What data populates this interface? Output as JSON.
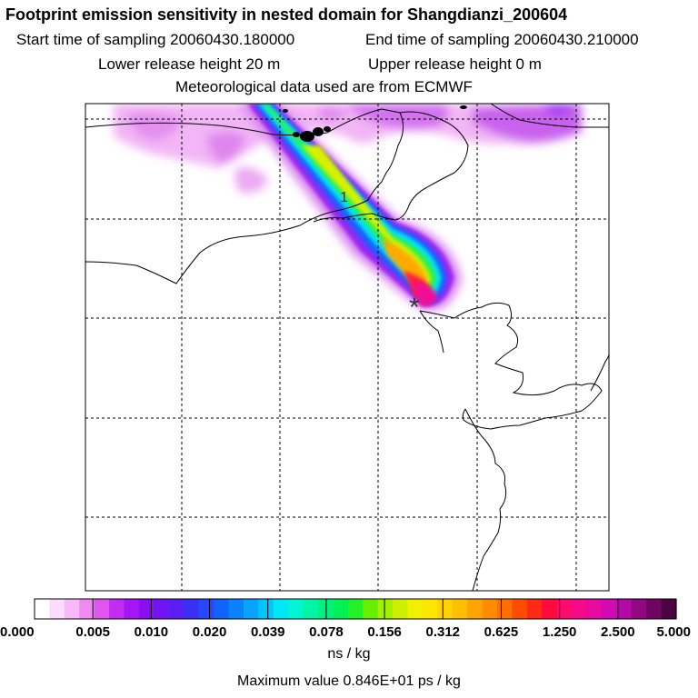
{
  "header": {
    "title": "Footprint emission sensitivity in nested domain for Shangdianzi_200604",
    "start": "Start time of sampling 20060430.180000",
    "end": "End time of sampling 20060430.210000",
    "lower": "Lower release height   20 m",
    "upper": "Upper release height    0 m",
    "met": "Meteorological data used are from ECMWF"
  },
  "footer": {
    "unit": "ns / kg",
    "max": "Maximum value  0.846E+01 ps / kg"
  },
  "colors": {
    "background": "#ffffff",
    "frame": "#000000"
  },
  "chart_data": {
    "type": "heatmap",
    "title": "Footprint emission sensitivity in nested domain for Shangdianzi_200604",
    "receptor_marker": "*",
    "plume_label": "1",
    "grid": true,
    "units": "ns / kg",
    "max_value": "0.846E+01 ps / kg",
    "colorbar": {
      "labels": [
        "0.000",
        "0.005",
        "0.010",
        "0.020",
        "0.039",
        "0.078",
        "0.156",
        "0.312",
        "0.625",
        "1.250",
        "2.500",
        "5.000"
      ],
      "colors": [
        "#ffffff",
        "#fcdcfc",
        "#f7b9f7",
        "#f08af3",
        "#df55ee",
        "#c22cf0",
        "#a316f5",
        "#8a0ef2",
        "#7014f5",
        "#5a1ef5",
        "#3a30f5",
        "#2548ff",
        "#1063ff",
        "#0a82ff",
        "#08a2ff",
        "#00c8ff",
        "#00e8f5",
        "#00f5d2",
        "#00f5a5",
        "#00f080",
        "#00f055",
        "#22f028",
        "#66f000",
        "#a0f000",
        "#cdf000",
        "#f0f000",
        "#ffe600",
        "#ffd200",
        "#ffbe00",
        "#ffa500",
        "#ff8c00",
        "#ff6e00",
        "#ff4b00",
        "#ff2a14",
        "#ff0a3c",
        "#ff0a6e",
        "#f50a8c",
        "#e60aa0",
        "#d20ab4",
        "#b40aa5",
        "#91087f",
        "#6e065f",
        "#4b043f"
      ]
    }
  }
}
